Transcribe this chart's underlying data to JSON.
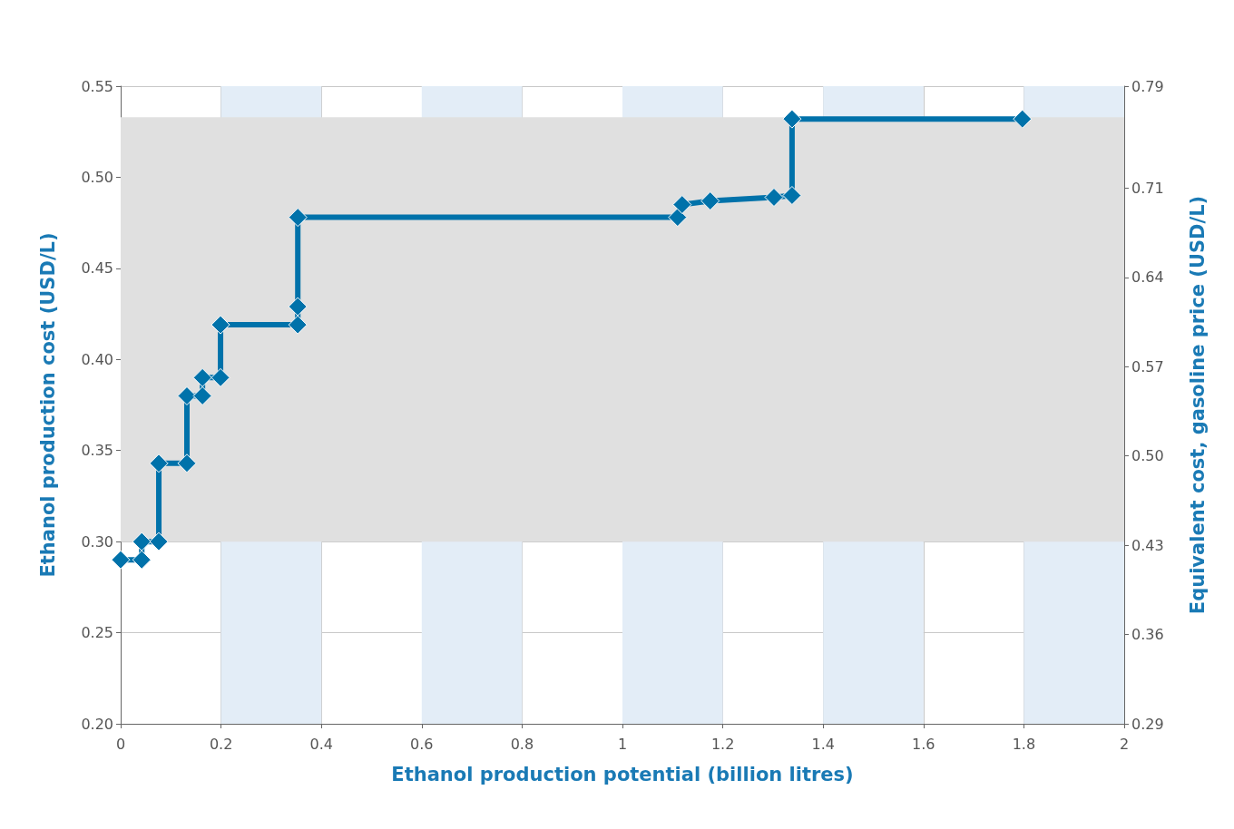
{
  "chart_data": {
    "type": "line",
    "xlabel": "Ethanol production potential (billion litres)",
    "ylabel": "Ethanol production cost (USD/L)",
    "y2label": "Equivalent cost, gasoline price (USD/L)",
    "x": [
      0,
      0.042,
      0.042,
      0.076,
      0.076,
      0.132,
      0.132,
      0.163,
      0.163,
      0.199,
      0.199,
      0.353,
      0.353,
      0.353,
      1.11,
      1.119,
      1.175,
      1.302,
      1.338,
      1.338,
      1.797
    ],
    "series": [
      {
        "color": "#0072aa",
        "values": [
          0.29,
          0.29,
          0.3,
          0.3,
          0.343,
          0.343,
          0.38,
          0.38,
          0.39,
          0.39,
          0.419,
          0.419,
          0.429,
          0.478,
          0.478,
          0.485,
          0.487,
          0.489,
          0.49,
          0.532,
          0.532
        ]
      }
    ],
    "xlim": [
      0,
      2
    ],
    "xticks": [
      0,
      0.2,
      0.4,
      0.6,
      0.8,
      1,
      1.2,
      1.4,
      1.6,
      1.8,
      2
    ],
    "ylim": [
      0.2,
      0.55
    ],
    "yticks": [
      {
        "value": 0.2,
        "label": "0.20"
      },
      0.25,
      {
        "value": 0.3,
        "label": "0.30"
      },
      0.35,
      {
        "value": 0.4,
        "label": "0.40"
      },
      0.45,
      {
        "value": 0.5,
        "label": "0.50"
      },
      0.55
    ],
    "y2lim": [
      0.29,
      0.79
    ],
    "y2ticks": [
      0.29,
      0.36,
      0.43,
      {
        "value": 0.5,
        "label": "0.50"
      },
      0.57,
      0.64,
      0.71,
      0.79
    ],
    "bands": [
      {
        "axis": "x",
        "from": 0.2,
        "to": 0.4,
        "color": "#e3edf7"
      },
      {
        "axis": "x",
        "from": 0.6,
        "to": 0.8,
        "color": "#e3edf7"
      },
      {
        "axis": "x",
        "from": 1,
        "to": 1.2,
        "color": "#e3edf7"
      },
      {
        "axis": "x",
        "from": 1.4,
        "to": 1.6,
        "color": "#e3edf7"
      },
      {
        "axis": "x",
        "from": 1.8,
        "to": 2,
        "color": "#e3edf7"
      },
      {
        "axis": "y",
        "from": 0.3,
        "to": 0.533,
        "color": "#e0e0e0"
      }
    ],
    "grid": true,
    "marker": "diamond",
    "line_style": "solid"
  }
}
